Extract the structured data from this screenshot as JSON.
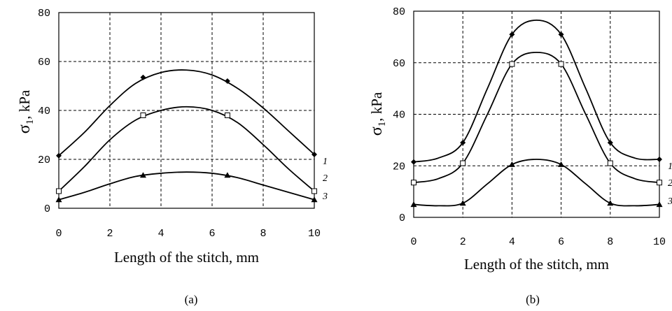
{
  "chart_data": [
    {
      "type": "line",
      "caption": "(a)",
      "xlabel": "Length of the stitch, mm",
      "ylabel": "σ1 ,  kPa",
      "ylabel_main": "σ",
      "ylabel_sub": "1",
      "ylabel_unit": ",  kPa",
      "xlim": [
        0,
        10
      ],
      "ylim": [
        0,
        80
      ],
      "xticks": [
        "0",
        "2",
        "4",
        "6",
        "8",
        "10"
      ],
      "yticks": [
        "0",
        "20",
        "40",
        "60",
        "80"
      ],
      "grid": true,
      "series": [
        {
          "name": "1",
          "marker": "diamond",
          "markers": [
            [
              0,
              21.5
            ],
            [
              3.3,
              53.5
            ],
            [
              6.6,
              52
            ],
            [
              10,
              22
            ]
          ],
          "curve": [
            [
              0,
              21.5
            ],
            [
              1,
              31
            ],
            [
              2,
              42
            ],
            [
              3,
              51
            ],
            [
              4,
              55.5
            ],
            [
              5,
              56.5
            ],
            [
              6,
              54.5
            ],
            [
              7,
              49
            ],
            [
              8,
              41
            ],
            [
              9,
              31.5
            ],
            [
              10,
              22
            ]
          ]
        },
        {
          "name": "2",
          "marker": "square",
          "markers": [
            [
              0,
              7
            ],
            [
              3.3,
              38
            ],
            [
              6.6,
              38
            ],
            [
              10,
              7
            ]
          ],
          "curve": [
            [
              0,
              7
            ],
            [
              1,
              17
            ],
            [
              2,
              28
            ],
            [
              3,
              36
            ],
            [
              4,
              40
            ],
            [
              5,
              41.5
            ],
            [
              6,
              40
            ],
            [
              7,
              35
            ],
            [
              8,
              26
            ],
            [
              9,
              16
            ],
            [
              10,
              7
            ]
          ]
        },
        {
          "name": "3",
          "marker": "triangle",
          "markers": [
            [
              0,
              3.5
            ],
            [
              3.3,
              13.5
            ],
            [
              6.6,
              13.5
            ],
            [
              10,
              3.5
            ]
          ],
          "curve": [
            [
              0,
              3.5
            ],
            [
              1,
              6.5
            ],
            [
              2,
              10
            ],
            [
              3,
              13
            ],
            [
              4,
              14.3
            ],
            [
              5,
              14.8
            ],
            [
              6,
              14.3
            ],
            [
              7,
              12.5
            ],
            [
              8,
              9.5
            ],
            [
              9,
              6.5
            ],
            [
              10,
              3.5
            ]
          ]
        }
      ]
    },
    {
      "type": "line",
      "caption": "(b)",
      "xlabel": "Length of the stitch, mm",
      "ylabel": "σ1,  kPa",
      "ylabel_main": "σ",
      "ylabel_sub": "1",
      "ylabel_unit": ",  kPa",
      "xlim": [
        0,
        10
      ],
      "ylim": [
        0,
        80
      ],
      "xticks": [
        "0",
        "2",
        "4",
        "6",
        "8",
        "10"
      ],
      "yticks": [
        "0",
        "20",
        "40",
        "60",
        "80"
      ],
      "grid": true,
      "series": [
        {
          "name": "1",
          "marker": "diamond",
          "markers": [
            [
              0,
              21.5
            ],
            [
              2,
              29
            ],
            [
              4,
              71
            ],
            [
              6,
              71
            ],
            [
              8,
              29
            ],
            [
              10,
              22.5
            ]
          ],
          "curve": [
            [
              0,
              21.5
            ],
            [
              1,
              23
            ],
            [
              2,
              29
            ],
            [
              3,
              50
            ],
            [
              4,
              71
            ],
            [
              5,
              76.5
            ],
            [
              6,
              71
            ],
            [
              7,
              50
            ],
            [
              8,
              29
            ],
            [
              9,
              23
            ],
            [
              10,
              22.5
            ]
          ]
        },
        {
          "name": "2",
          "marker": "square",
          "markers": [
            [
              0,
              13.5
            ],
            [
              2,
              21
            ],
            [
              4,
              59.5
            ],
            [
              6,
              59.5
            ],
            [
              8,
              21
            ],
            [
              10,
              13.5
            ]
          ],
          "curve": [
            [
              0,
              13.5
            ],
            [
              1,
              15
            ],
            [
              2,
              21
            ],
            [
              3,
              40
            ],
            [
              4,
              59.5
            ],
            [
              5,
              64
            ],
            [
              6,
              59.5
            ],
            [
              7,
              40
            ],
            [
              8,
              21
            ],
            [
              9,
              15
            ],
            [
              10,
              13.5
            ]
          ]
        },
        {
          "name": "3",
          "marker": "triangle",
          "markers": [
            [
              0,
              5
            ],
            [
              2,
              5.5
            ],
            [
              4,
              20.5
            ],
            [
              6,
              20.5
            ],
            [
              8,
              5.5
            ],
            [
              10,
              5
            ]
          ],
          "curve": [
            [
              0,
              5
            ],
            [
              1,
              4.5
            ],
            [
              2,
              5.5
            ],
            [
              3,
              13
            ],
            [
              4,
              20.5
            ],
            [
              5,
              22.5
            ],
            [
              6,
              20.5
            ],
            [
              7,
              13
            ],
            [
              8,
              5.5
            ],
            [
              9,
              4.5
            ],
            [
              10,
              5
            ]
          ]
        }
      ]
    }
  ],
  "style": {
    "line_color": "#000000",
    "background": "#ffffff"
  }
}
